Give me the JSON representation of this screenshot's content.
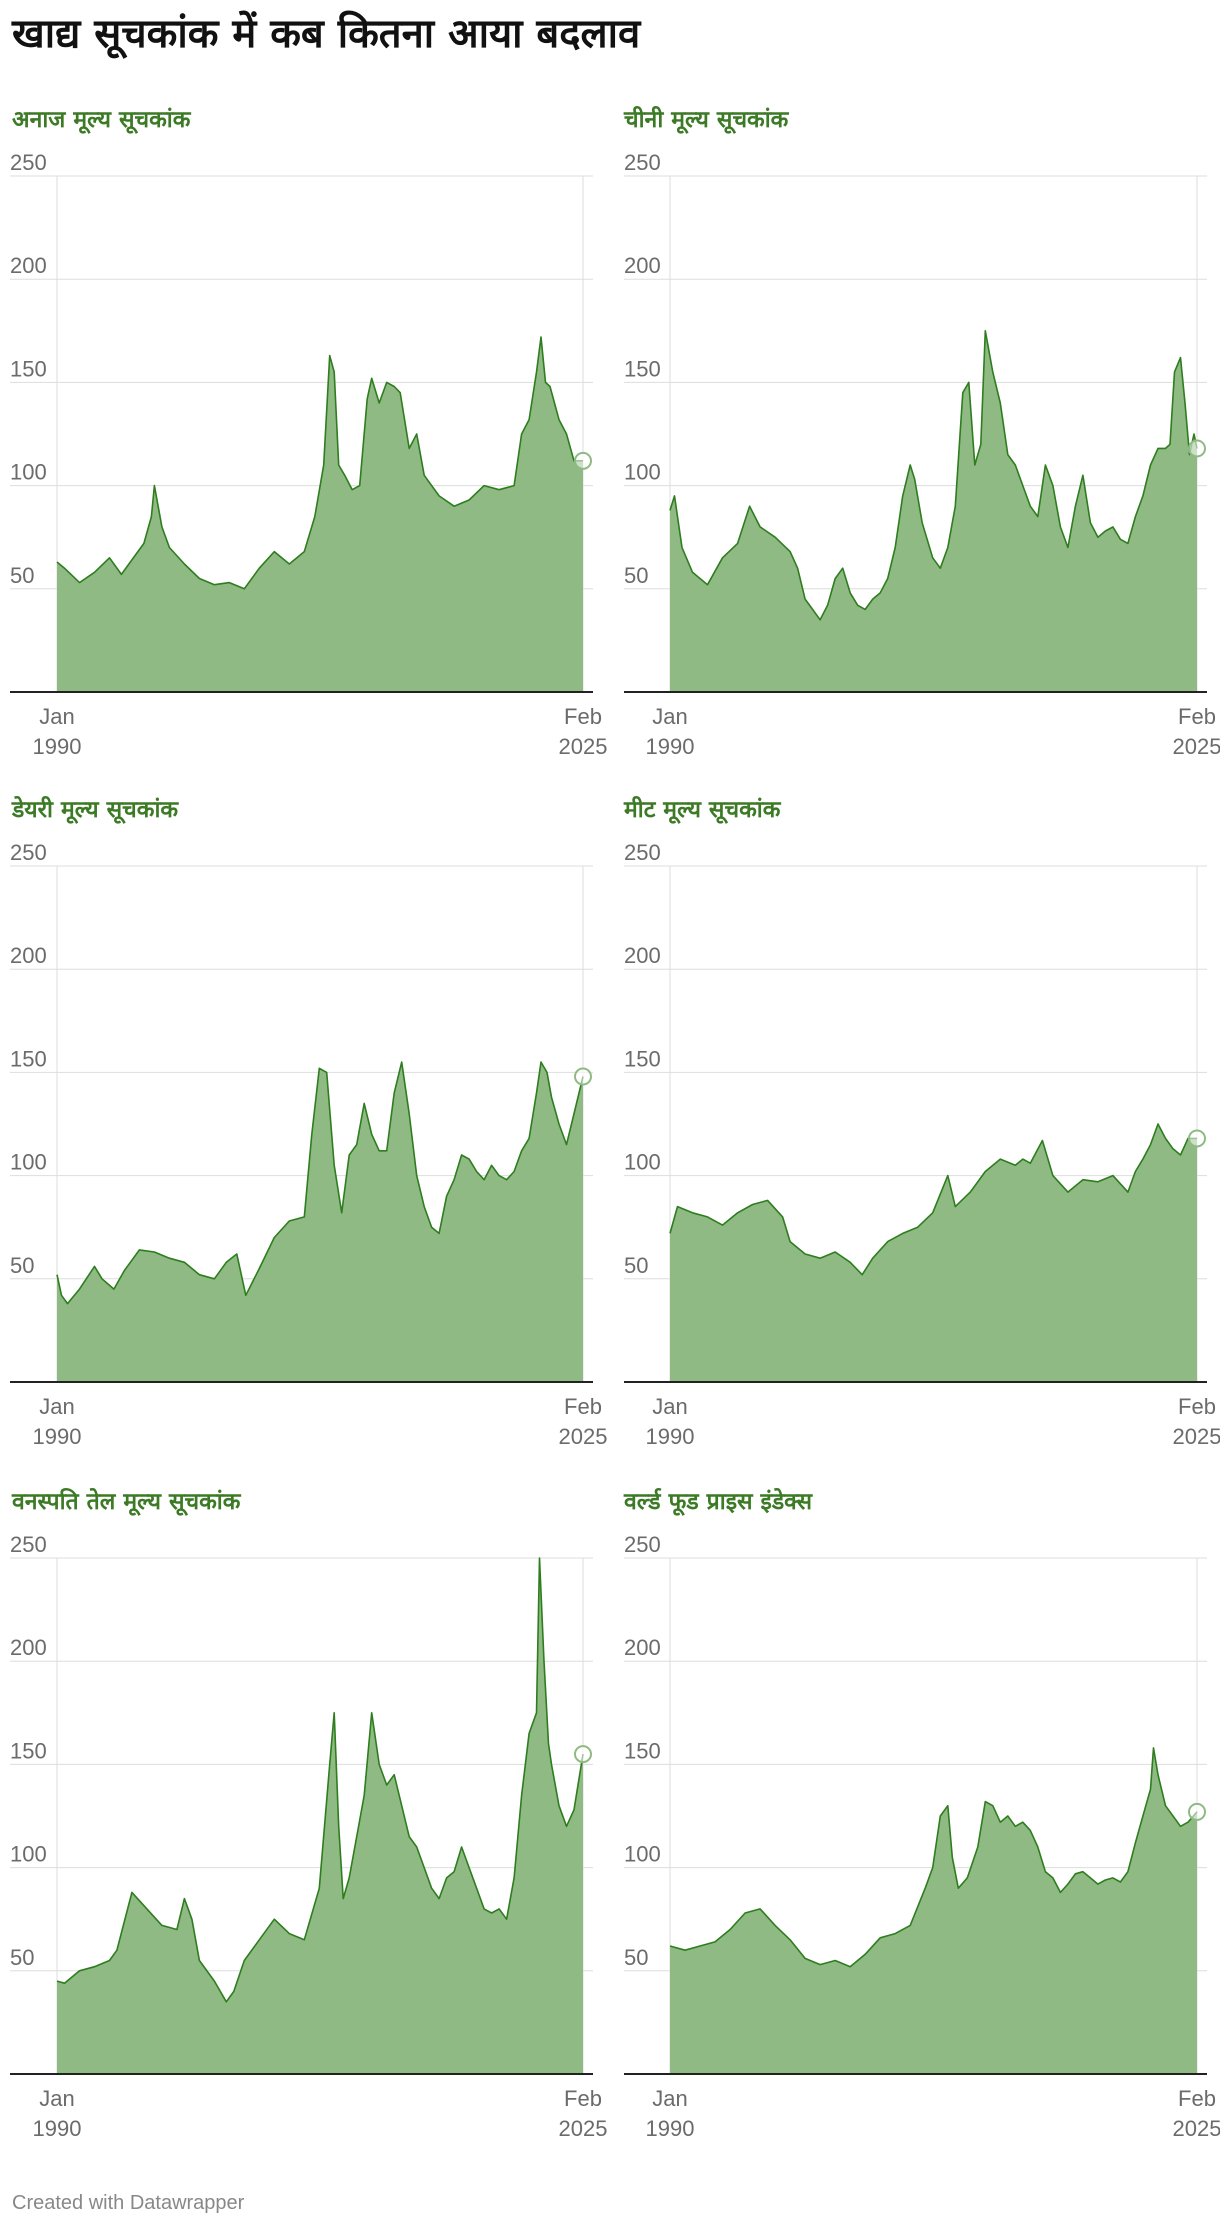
{
  "page": {
    "title": "खाद्य सूचकांक में कब कितना आया बदलाव",
    "footer": "Created with Datawrapper"
  },
  "colors": {
    "line": "#2e7d1f",
    "fill": "#8fba84",
    "grid": "#dddddd",
    "baseline": "#222222",
    "title": "#3c7a26",
    "tick": "#6b6b6b"
  },
  "chart_data": [
    {
      "type": "area",
      "title": "अनाज मूल्य सूचकांक",
      "y_ticks": [
        "250",
        "200",
        "150",
        "100",
        "50"
      ],
      "ylim": [
        0,
        250
      ],
      "x_ticks": [
        {
          "month": "Jan",
          "year": "1990"
        },
        {
          "month": "Feb",
          "year": "2025"
        }
      ],
      "x": [
        1990.0,
        1990.5,
        1991.5,
        1992.5,
        1993.5,
        1994.3,
        1995.0,
        1995.8,
        1996.3,
        1996.5,
        1997.0,
        1997.5,
        1998.5,
        1999.5,
        2000.5,
        2001.5,
        2002.5,
        2003.5,
        2004.5,
        2005.5,
        2006.5,
        2007.2,
        2007.8,
        2008.2,
        2008.5,
        2008.8,
        2009.2,
        2009.7,
        2010.2,
        2010.7,
        2011.0,
        2011.5,
        2012.0,
        2012.5,
        2012.9,
        2013.5,
        2014.0,
        2014.5,
        2015.5,
        2016.5,
        2017.5,
        2018.5,
        2019.5,
        2020.5,
        2021.0,
        2021.5,
        2022.0,
        2022.3,
        2022.6,
        2022.9,
        2023.5,
        2024.0,
        2024.5,
        2025.1
      ],
      "values": [
        63,
        60,
        53,
        58,
        65,
        57,
        64,
        72,
        85,
        100,
        80,
        70,
        62,
        55,
        52,
        53,
        50,
        60,
        68,
        62,
        68,
        85,
        110,
        163,
        155,
        110,
        105,
        98,
        100,
        142,
        152,
        140,
        150,
        148,
        145,
        118,
        125,
        105,
        95,
        90,
        93,
        100,
        98,
        100,
        125,
        132,
        155,
        172,
        150,
        148,
        132,
        125,
        112,
        112
      ]
    },
    {
      "type": "area",
      "title": "चीनी मूल्य सूचकांक",
      "y_ticks": [
        "250",
        "200",
        "150",
        "100",
        "50"
      ],
      "ylim": [
        0,
        250
      ],
      "x_ticks": [
        {
          "month": "Jan",
          "year": "1990"
        },
        {
          "month": "Feb",
          "year": "2025"
        }
      ],
      "x": [
        1990.0,
        1990.3,
        1990.8,
        1991.5,
        1992.5,
        1993.5,
        1994.5,
        1995.3,
        1996.0,
        1997.0,
        1998.0,
        1998.5,
        1999.0,
        1999.5,
        2000.0,
        2000.5,
        2001.0,
        2001.5,
        2002.0,
        2002.5,
        2003.0,
        2003.5,
        2004.0,
        2004.5,
        2005.0,
        2005.5,
        2006.0,
        2006.3,
        2006.8,
        2007.5,
        2008.0,
        2008.5,
        2009.0,
        2009.5,
        2009.9,
        2010.3,
        2010.7,
        2011.0,
        2011.5,
        2012.0,
        2012.5,
        2013.0,
        2013.5,
        2014.0,
        2014.5,
        2015.0,
        2015.5,
        2016.0,
        2016.5,
        2017.0,
        2017.5,
        2018.0,
        2018.5,
        2019.0,
        2019.5,
        2020.0,
        2020.5,
        2021.0,
        2021.5,
        2022.0,
        2022.5,
        2023.0,
        2023.3,
        2023.6,
        2024.0,
        2024.3,
        2024.6,
        2024.9,
        2025.1
      ],
      "values": [
        88,
        95,
        70,
        58,
        52,
        65,
        72,
        90,
        80,
        75,
        68,
        60,
        45,
        40,
        35,
        42,
        55,
        60,
        48,
        42,
        40,
        45,
        48,
        55,
        70,
        95,
        110,
        103,
        82,
        65,
        60,
        70,
        90,
        145,
        150,
        110,
        120,
        175,
        155,
        140,
        115,
        110,
        100,
        90,
        85,
        110,
        100,
        80,
        70,
        90,
        105,
        82,
        75,
        78,
        80,
        74,
        72,
        85,
        95,
        110,
        118,
        118,
        120,
        155,
        162,
        140,
        115,
        125,
        118
      ]
    },
    {
      "type": "area",
      "title": "डेयरी मूल्य सूचकांक",
      "y_ticks": [
        "250",
        "200",
        "150",
        "100",
        "50"
      ],
      "ylim": [
        0,
        250
      ],
      "x_ticks": [
        {
          "month": "Jan",
          "year": "1990"
        },
        {
          "month": "Feb",
          "year": "2025"
        }
      ],
      "x": [
        1990.0,
        1990.3,
        1990.7,
        1991.5,
        1992.5,
        1993.0,
        1993.8,
        1994.5,
        1995.5,
        1996.5,
        1997.5,
        1998.5,
        1999.5,
        2000.5,
        2001.3,
        2002.0,
        2002.6,
        2003.5,
        2004.5,
        2005.5,
        2006.5,
        2007.0,
        2007.5,
        2008.0,
        2008.5,
        2009.0,
        2009.5,
        2010.0,
        2010.5,
        2011.0,
        2011.5,
        2012.0,
        2012.5,
        2013.0,
        2013.5,
        2014.0,
        2014.5,
        2015.0,
        2015.5,
        2016.0,
        2016.5,
        2017.0,
        2017.5,
        2018.0,
        2018.5,
        2019.0,
        2019.5,
        2020.0,
        2020.5,
        2021.0,
        2021.5,
        2022.0,
        2022.3,
        2022.7,
        2023.0,
        2023.5,
        2024.0,
        2024.5,
        2025.1
      ],
      "values": [
        52,
        42,
        38,
        45,
        56,
        50,
        45,
        54,
        64,
        63,
        60,
        58,
        52,
        50,
        58,
        62,
        42,
        55,
        70,
        78,
        80,
        120,
        152,
        150,
        105,
        82,
        110,
        115,
        135,
        120,
        112,
        112,
        140,
        155,
        130,
        100,
        85,
        75,
        72,
        90,
        98,
        110,
        108,
        102,
        98,
        105,
        100,
        98,
        102,
        112,
        118,
        140,
        155,
        150,
        138,
        125,
        115,
        130,
        148
      ]
    },
    {
      "type": "area",
      "title": "मीट मूल्य सूचकांक",
      "y_ticks": [
        "250",
        "200",
        "150",
        "100",
        "50"
      ],
      "ylim": [
        0,
        250
      ],
      "x_ticks": [
        {
          "month": "Jan",
          "year": "1990"
        },
        {
          "month": "Feb",
          "year": "2025"
        }
      ],
      "x": [
        1990.0,
        1990.5,
        1991.5,
        1992.5,
        1993.5,
        1994.5,
        1995.5,
        1996.5,
        1997.5,
        1998.0,
        1999.0,
        2000.0,
        2001.0,
        2002.0,
        2002.8,
        2003.5,
        2004.5,
        2005.5,
        2006.5,
        2007.5,
        2008.5,
        2009.0,
        2010.0,
        2011.0,
        2012.0,
        2013.0,
        2013.5,
        2014.0,
        2014.8,
        2015.5,
        2016.5,
        2017.5,
        2018.5,
        2019.5,
        2020.5,
        2021.0,
        2021.5,
        2022.0,
        2022.5,
        2023.0,
        2023.5,
        2024.0,
        2024.5,
        2025.1
      ],
      "values": [
        72,
        85,
        82,
        80,
        76,
        82,
        86,
        88,
        80,
        68,
        62,
        60,
        63,
        58,
        52,
        60,
        68,
        72,
        75,
        82,
        100,
        85,
        92,
        102,
        108,
        105,
        108,
        106,
        117,
        100,
        92,
        98,
        97,
        100,
        92,
        102,
        108,
        115,
        125,
        118,
        113,
        110,
        118,
        118
      ]
    },
    {
      "type": "area",
      "title": "वनस्पति तेल मूल्य सूचकांक",
      "y_ticks": [
        "250",
        "200",
        "150",
        "100",
        "50"
      ],
      "ylim": [
        0,
        250
      ],
      "x_ticks": [
        {
          "month": "Jan",
          "year": "1990"
        },
        {
          "month": "Feb",
          "year": "2025"
        }
      ],
      "x": [
        1990.0,
        1990.5,
        1991.5,
        1992.5,
        1993.5,
        1994.0,
        1995.0,
        1996.0,
        1997.0,
        1998.0,
        1998.5,
        1999.0,
        1999.5,
        2000.5,
        2001.3,
        2001.8,
        2002.5,
        2003.5,
        2004.5,
        2005.5,
        2006.5,
        2007.5,
        2008.2,
        2008.5,
        2008.8,
        2009.1,
        2009.5,
        2010.0,
        2010.5,
        2011.0,
        2011.5,
        2012.0,
        2012.5,
        2013.0,
        2013.5,
        2014.0,
        2014.5,
        2015.0,
        2015.5,
        2016.0,
        2016.5,
        2017.0,
        2017.5,
        2018.0,
        2018.5,
        2019.0,
        2019.5,
        2020.0,
        2020.5,
        2021.0,
        2021.5,
        2022.0,
        2022.2,
        2022.5,
        2022.8,
        2023.0,
        2023.5,
        2024.0,
        2024.5,
        2025.1
      ],
      "values": [
        45,
        44,
        50,
        52,
        55,
        60,
        88,
        80,
        72,
        70,
        85,
        75,
        55,
        45,
        35,
        40,
        55,
        65,
        75,
        68,
        65,
        90,
        150,
        175,
        120,
        85,
        95,
        115,
        135,
        175,
        150,
        140,
        145,
        130,
        115,
        110,
        100,
        90,
        85,
        95,
        98,
        110,
        100,
        90,
        80,
        78,
        80,
        75,
        95,
        135,
        165,
        175,
        250,
        200,
        160,
        150,
        130,
        120,
        128,
        155
      ]
    },
    {
      "type": "area",
      "title": "वर्ल्ड फूड प्राइस इंडेक्स",
      "y_ticks": [
        "250",
        "200",
        "150",
        "100",
        "50"
      ],
      "ylim": [
        0,
        250
      ],
      "x_ticks": [
        {
          "month": "Jan",
          "year": "1990"
        },
        {
          "month": "Feb",
          "year": "2025"
        }
      ],
      "x": [
        1990.0,
        1991.0,
        1992.0,
        1993.0,
        1994.0,
        1995.0,
        1996.0,
        1997.0,
        1998.0,
        1999.0,
        2000.0,
        2001.0,
        2002.0,
        2003.0,
        2004.0,
        2005.0,
        2006.0,
        2007.0,
        2007.5,
        2008.0,
        2008.5,
        2008.8,
        2009.2,
        2009.8,
        2010.5,
        2011.0,
        2011.5,
        2012.0,
        2012.5,
        2013.0,
        2013.5,
        2014.0,
        2014.5,
        2015.0,
        2015.5,
        2016.0,
        2016.5,
        2017.0,
        2017.5,
        2018.0,
        2018.5,
        2019.0,
        2019.5,
        2020.0,
        2020.5,
        2021.0,
        2021.5,
        2022.0,
        2022.2,
        2022.5,
        2023.0,
        2023.5,
        2024.0,
        2024.5,
        2025.1
      ],
      "values": [
        62,
        60,
        62,
        64,
        70,
        78,
        80,
        72,
        65,
        56,
        53,
        55,
        52,
        58,
        66,
        68,
        72,
        90,
        100,
        125,
        130,
        105,
        90,
        95,
        110,
        132,
        130,
        122,
        125,
        120,
        122,
        118,
        110,
        98,
        95,
        88,
        92,
        97,
        98,
        95,
        92,
        94,
        95,
        93,
        98,
        112,
        125,
        138,
        158,
        145,
        130,
        125,
        120,
        122,
        127
      ]
    }
  ]
}
